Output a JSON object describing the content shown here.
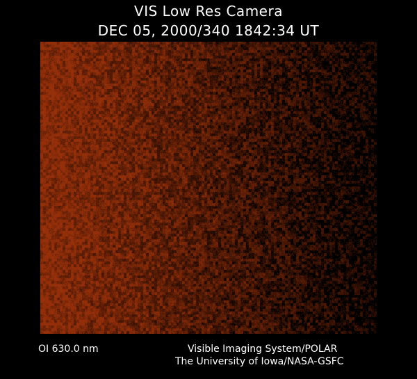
{
  "title": "VIS Low Res Camera",
  "timestamp": "DEC 05, 2000/340 1842:34 UT",
  "wavelength_label": "OI  630.0 nm",
  "credit_line1": "Visible Imaging System/POLAR",
  "credit_line2": "The University of Iowa/NASA-GSFC",
  "colors": {
    "background": "#000000",
    "emission": "#8a2a08"
  }
}
